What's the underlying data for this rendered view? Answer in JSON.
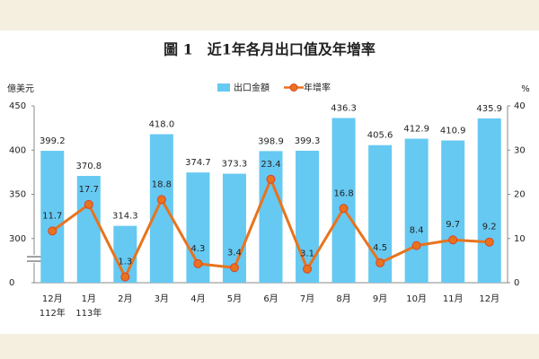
{
  "chart_data": {
    "type": "bar_line",
    "title": "圖 1　近1年各月出口值及年增率",
    "y_axis_label": "億美元",
    "y2_axis_label": "%",
    "categories": [
      "12月",
      "1月",
      "2月",
      "3月",
      "4月",
      "5月",
      "6月",
      "7月",
      "8月",
      "9月",
      "10月",
      "11月",
      "12月"
    ],
    "category_years": [
      "112年",
      "113年",
      null,
      null,
      null,
      null,
      null,
      null,
      null,
      null,
      null,
      null,
      null
    ],
    "series": [
      {
        "name": "出口金額",
        "type": "bar",
        "color": "#66c9f2",
        "values": [
          399.2,
          370.8,
          314.3,
          418.0,
          374.7,
          373.3,
          398.9,
          399.3,
          436.3,
          405.6,
          412.9,
          410.9,
          435.9
        ],
        "value_labels": [
          "399.2",
          "370.8",
          "314.3",
          "418.0",
          "374.7",
          "373.3",
          "398.9",
          "399.3",
          "436.3",
          "405.6",
          "412.9",
          "410.9",
          "435.9"
        ]
      },
      {
        "name": "年增率",
        "type": "line",
        "axis": "y2",
        "color": "#e9731c",
        "marker_edge": "#d9442a",
        "values": [
          11.7,
          17.7,
          1.3,
          18.8,
          4.3,
          3.4,
          23.4,
          3.1,
          16.8,
          4.5,
          8.4,
          9.7,
          9.2
        ]
      }
    ],
    "ylim": [
      0,
      450
    ],
    "yticks": [
      0,
      300,
      350,
      400,
      450
    ],
    "y_axis_break": true,
    "y2lim": [
      0,
      40
    ],
    "y2ticks": [
      0,
      10,
      20,
      30,
      40
    ],
    "legend": "top"
  }
}
